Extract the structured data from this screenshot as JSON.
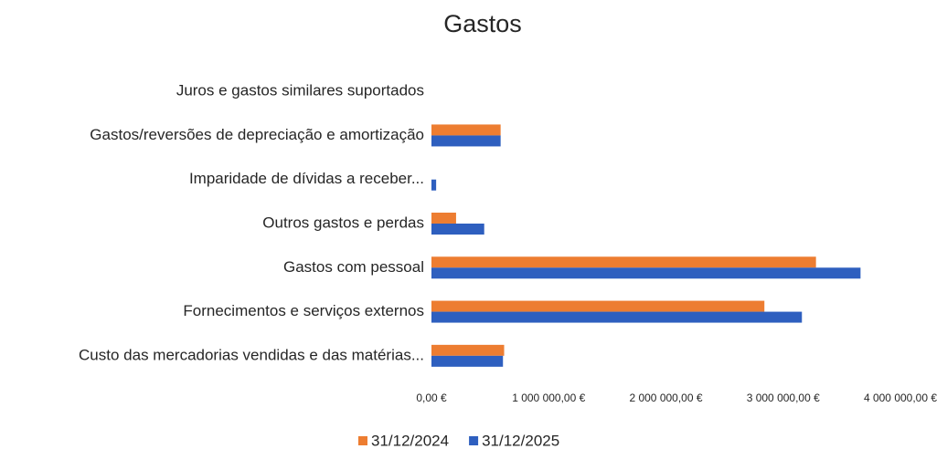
{
  "chart_data": {
    "type": "hbar",
    "title": "Gastos",
    "categories": [
      "Juros e gastos similares suportados",
      "Gastos/reversões de depreciação e amortização",
      "Imparidade de dívidas a receber...",
      "Outros gastos e perdas",
      "Gastos com pessoal",
      "Fornecimentos e serviços externos",
      "Custo das mercadorias vendidas e das matérias..."
    ],
    "series": [
      {
        "name": "31/12/2024",
        "color": "#ed7d31",
        "values": [
          0,
          590000,
          0,
          210000,
          3280000,
          2840000,
          620000
        ]
      },
      {
        "name": "31/12/2025",
        "color": "#2e5fbf",
        "values": [
          0,
          590000,
          40000,
          450000,
          3660000,
          3160000,
          610000
        ]
      }
    ],
    "xlim": [
      0,
      4000000
    ],
    "xticks": [
      {
        "value": 0,
        "label": "0,00 €"
      },
      {
        "value": 1000000,
        "label": "1 000 000,00 €"
      },
      {
        "value": 2000000,
        "label": "2 000 000,00 €"
      },
      {
        "value": 3000000,
        "label": "3 000 000,00 €"
      },
      {
        "value": 4000000,
        "label": "4 000 000,00 €"
      }
    ],
    "grid": false,
    "legend": "bottom"
  }
}
